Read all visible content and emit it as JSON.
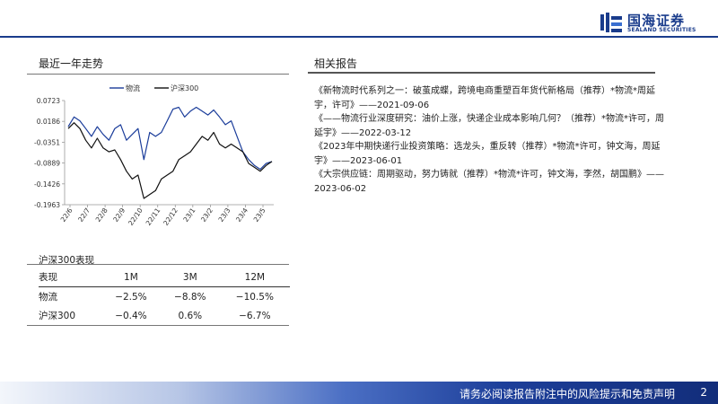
{
  "header": {
    "brand_cn": "国海证券",
    "brand_en": "SEALAND SECURITIES",
    "brand_color": "#1a3c8c"
  },
  "left": {
    "section_title": "最近一年走势"
  },
  "right": {
    "section_title": "相关报告",
    "reports": [
      "《新物流时代系列之一：破茧成蝶，跨境电商重塑百年货代新格局（推荐）*物流*周延宇，许可》——2021-09-06",
      "《——物流行业深度研究：油价上涨，快递企业成本影响几何？（推荐）*物流*许可，周延宇》——2022-03-12",
      "《2023年中期快递行业投资策略：选龙头，重反转（推荐）*物流*许可，钟文海，周延宇》——2023-06-01",
      "《大宗供应链：周期驱动，努力铸就（推荐）*物流*许可，钟文海，李然，胡国鹏》——2023-06-02"
    ]
  },
  "chart_data": {
    "type": "line",
    "title": "",
    "xlabel": "",
    "ylabel": "",
    "ylim": [
      -0.1963,
      0.0723
    ],
    "yticks": [
      "0.0723",
      "0.0186",
      "-0.0351",
      "-0.0889",
      "-0.1426",
      "-0.1963"
    ],
    "xticks": [
      "22/6",
      "22/7",
      "22/8",
      "22/9",
      "22/10",
      "22/11",
      "22/12",
      "23/1",
      "23/2",
      "23/3",
      "23/4",
      "23/5"
    ],
    "legend_position": "top",
    "series": [
      {
        "name": "物流",
        "color": "#1a3c9a",
        "points": [
          [
            "22/6",
            0.005
          ],
          [
            "22/6",
            0.03
          ],
          [
            "22/6",
            0.02
          ],
          [
            "22/7",
            0.0
          ],
          [
            "22/7",
            -0.02
          ],
          [
            "22/7",
            0.005
          ],
          [
            "22/8",
            -0.015
          ],
          [
            "22/8",
            -0.03
          ],
          [
            "22/8",
            0.0
          ],
          [
            "22/9",
            0.01
          ],
          [
            "22/9",
            -0.03
          ],
          [
            "22/9",
            -0.015
          ],
          [
            "22/10",
            0.0
          ],
          [
            "22/10",
            -0.08
          ],
          [
            "22/10",
            -0.01
          ],
          [
            "22/10",
            -0.02
          ],
          [
            "22/11",
            -0.01
          ],
          [
            "22/11",
            0.02
          ],
          [
            "22/11",
            0.05
          ],
          [
            "22/12",
            0.055
          ],
          [
            "22/12",
            0.03
          ],
          [
            "22/12",
            0.045
          ],
          [
            "23/1",
            0.055
          ],
          [
            "23/1",
            0.045
          ],
          [
            "23/2",
            0.035
          ],
          [
            "23/2",
            0.048
          ],
          [
            "23/3",
            0.03
          ],
          [
            "23/3",
            0.01
          ],
          [
            "23/4",
            0.02
          ],
          [
            "23/4",
            -0.02
          ],
          [
            "23/4",
            -0.06
          ],
          [
            "23/5",
            -0.08
          ],
          [
            "23/5",
            -0.095
          ],
          [
            "23/5",
            -0.105
          ],
          [
            "23/5",
            -0.09
          ],
          [
            "23/5",
            -0.085
          ]
        ]
      },
      {
        "name": "沪深300",
        "color": "#111111",
        "points": [
          [
            "22/6",
            0.0
          ],
          [
            "22/6",
            0.015
          ],
          [
            "22/6",
            0.0
          ],
          [
            "22/7",
            -0.03
          ],
          [
            "22/7",
            -0.05
          ],
          [
            "22/7",
            -0.025
          ],
          [
            "22/8",
            -0.05
          ],
          [
            "22/8",
            -0.06
          ],
          [
            "22/8",
            -0.055
          ],
          [
            "22/9",
            -0.08
          ],
          [
            "22/9",
            -0.11
          ],
          [
            "22/9",
            -0.13
          ],
          [
            "22/10",
            -0.12
          ],
          [
            "22/10",
            -0.18
          ],
          [
            "22/10",
            -0.17
          ],
          [
            "22/10",
            -0.16
          ],
          [
            "22/11",
            -0.13
          ],
          [
            "22/11",
            -0.12
          ],
          [
            "22/11",
            -0.11
          ],
          [
            "22/12",
            -0.08
          ],
          [
            "22/12",
            -0.07
          ],
          [
            "22/12",
            -0.06
          ],
          [
            "23/1",
            -0.04
          ],
          [
            "23/1",
            -0.02
          ],
          [
            "23/2",
            -0.03
          ],
          [
            "23/2",
            -0.01
          ],
          [
            "23/3",
            -0.04
          ],
          [
            "23/3",
            -0.05
          ],
          [
            "23/4",
            -0.04
          ],
          [
            "23/4",
            -0.05
          ],
          [
            "23/4",
            -0.06
          ],
          [
            "23/5",
            -0.09
          ],
          [
            "23/5",
            -0.1
          ],
          [
            "23/5",
            -0.11
          ],
          [
            "23/5",
            -0.095
          ],
          [
            "23/5",
            -0.085
          ]
        ]
      }
    ]
  },
  "table": {
    "title": "沪深300表现",
    "header": [
      "表现",
      "1M",
      "3M",
      "12M"
    ],
    "rows": [
      [
        "物流",
        "−2.5%",
        "−8.8%",
        "−10.5%"
      ],
      [
        "沪深300",
        "−0.4%",
        "0.6%",
        "−6.7%"
      ]
    ]
  },
  "footer": {
    "disclaimer": "请务必阅读报告附注中的风险提示和免责声明",
    "page": "2"
  }
}
